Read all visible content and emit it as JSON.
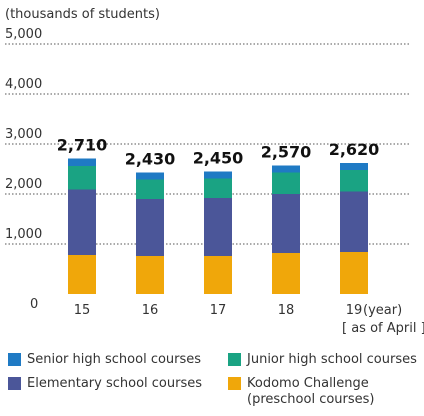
{
  "chart_data": {
    "type": "stacked-bar",
    "axis_label": "(thousands of students)",
    "x_unit": "(year)",
    "x_note": "[ as of April ]",
    "categories": [
      "15",
      "16",
      "17",
      "18",
      "19"
    ],
    "series": [
      {
        "name": "Senior high school courses",
        "color": "#1f7ac4",
        "values": [
          150,
          140,
          140,
          140,
          140
        ]
      },
      {
        "name": "Junior high school courses",
        "color": "#1aa383",
        "values": [
          470,
          390,
          390,
          430,
          430
        ]
      },
      {
        "name": "Elementary school courses",
        "color": "#4b5699",
        "values": [
          1310,
          1140,
          1160,
          1180,
          1210
        ]
      },
      {
        "name": "Kodomo Challenge (preschool courses)",
        "color": "#f0a70a",
        "values": [
          780,
          760,
          760,
          820,
          840
        ]
      }
    ],
    "totals": [
      2710,
      2430,
      2450,
      2570,
      2620
    ],
    "total_labels": [
      "2,710",
      "2,430",
      "2,450",
      "2,570",
      "2,620"
    ],
    "ylim": [
      0,
      5000
    ],
    "yticks": [
      0,
      {
        "value": 1000,
        "label": "1,000"
      },
      {
        "value": 2000,
        "label": "2,000"
      },
      {
        "value": 3000,
        "label": "3,000"
      },
      {
        "value": 4000,
        "label": "4,000"
      },
      {
        "value": 5000,
        "label": "5,000"
      }
    ],
    "grid": true
  }
}
